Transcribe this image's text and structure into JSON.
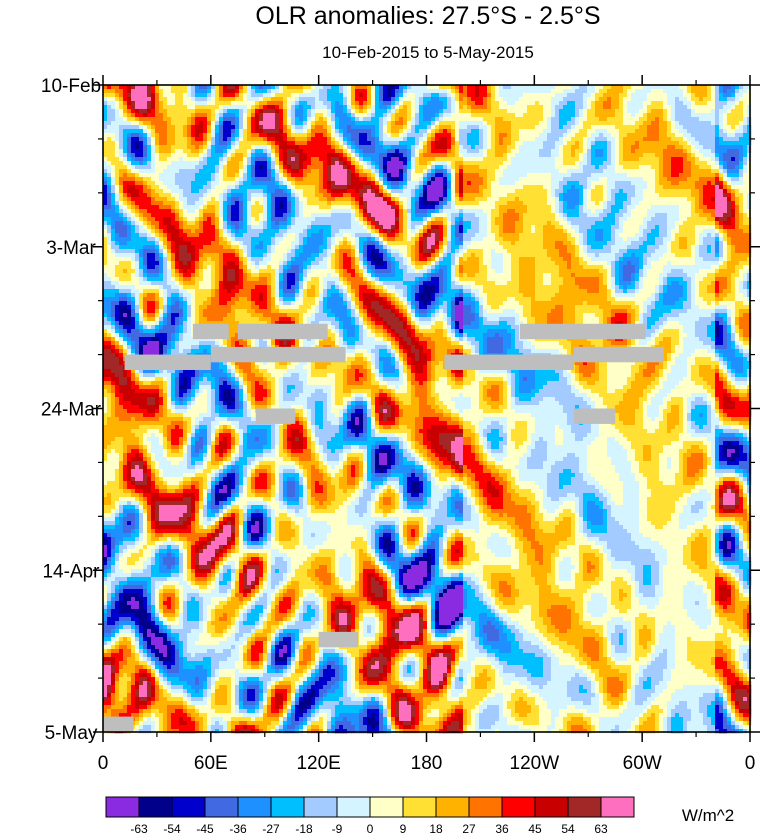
{
  "chart_data": {
    "type": "heatmap",
    "title": "OLR anomalies: 27.5°S - 2.5°S",
    "subtitle": "10-Feb-2015 to 5-May-2015",
    "xlabel": "",
    "ylabel": "",
    "x_ticks": [
      "0",
      "60E",
      "120E",
      "180",
      "120W",
      "60W",
      "0"
    ],
    "x_tick_values": [
      0,
      60,
      120,
      180,
      240,
      300,
      360
    ],
    "y_ticks": [
      "10-Feb",
      "3-Mar",
      "24-Mar",
      "14-Apr",
      "5-May"
    ],
    "y_tick_days": [
      0,
      21,
      42,
      63,
      84
    ],
    "xlim": [
      0,
      360
    ],
    "ylim_days": [
      0,
      84
    ],
    "y_axis_inverted": true,
    "colorbar": {
      "units": "W/m^2",
      "labels": [
        "-63",
        "-54",
        "-45",
        "-36",
        "-27",
        "-18",
        "-9",
        "0",
        "9",
        "18",
        "27",
        "36",
        "45",
        "54",
        "63"
      ],
      "colors": [
        "#8a2be2",
        "#00008b",
        "#0000cd",
        "#4169e1",
        "#1e90ff",
        "#00bfff",
        "#a3cbff",
        "#d4f5ff",
        "#ffffc8",
        "#ffe033",
        "#ffb300",
        "#ff7400",
        "#ff0000",
        "#c80000",
        "#a22828",
        "#ff6fc0"
      ]
    },
    "missing_color": "#bebebe",
    "missing_data_blocks": [
      {
        "lon": [
          50,
          70
        ],
        "day": [
          31,
          33
        ]
      },
      {
        "lon": [
          75,
          125
        ],
        "day": [
          31,
          33
        ]
      },
      {
        "lon": [
          12,
          60
        ],
        "day": [
          35,
          37
        ]
      },
      {
        "lon": [
          60,
          135
        ],
        "day": [
          34,
          36
        ]
      },
      {
        "lon": [
          190,
          262
        ],
        "day": [
          35,
          37
        ]
      },
      {
        "lon": [
          232,
          302
        ],
        "day": [
          31,
          33
        ]
      },
      {
        "lon": [
          262,
          312
        ],
        "day": [
          34,
          36
        ]
      },
      {
        "lon": [
          85,
          107
        ],
        "day": [
          42,
          44
        ]
      },
      {
        "lon": [
          262,
          285
        ],
        "day": [
          42,
          44
        ]
      },
      {
        "lon": [
          120,
          142
        ],
        "day": [
          71,
          73
        ]
      },
      {
        "lon": [
          0,
          17
        ],
        "day": [
          82,
          84
        ]
      }
    ]
  }
}
